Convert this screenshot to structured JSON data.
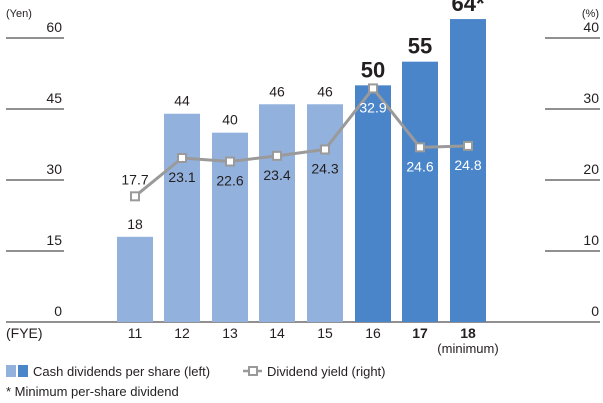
{
  "chart_data": {
    "type": "bar",
    "left_axis": {
      "unit": "(Yen)",
      "ticks": [
        "60",
        "45",
        "30",
        "15",
        "0"
      ],
      "ylim": [
        0,
        60
      ]
    },
    "right_axis": {
      "unit": "(%)",
      "ticks": [
        "40",
        "30",
        "20",
        "10",
        "0"
      ],
      "ylim": [
        0,
        40
      ]
    },
    "x_axis": {
      "label": "(FYE)",
      "categories": [
        "11",
        "12",
        "13",
        "14",
        "15",
        "16",
        "17",
        "18"
      ],
      "sublabel_18": "(minimum)"
    },
    "bar_labels": [
      "18",
      "44",
      "40",
      "46",
      "46",
      "50",
      "55",
      "64*"
    ],
    "series": [
      {
        "name": "Cash dividends per share (left)",
        "kind": "bar",
        "axis": "left",
        "values": [
          18,
          44,
          40,
          46,
          46,
          50,
          55,
          64
        ],
        "colors": [
          "#93b1dd",
          "#93b1dd",
          "#93b1dd",
          "#93b1dd",
          "#93b1dd",
          "#4a84c9",
          "#4a84c9",
          "#4a84c9"
        ]
      },
      {
        "name": "Dividend yield (right)",
        "kind": "line",
        "axis": "right",
        "values": [
          17.7,
          23.1,
          22.6,
          23.4,
          24.3,
          32.9,
          24.6,
          24.8
        ],
        "color": "#9a9a9a"
      }
    ],
    "line_labels": [
      "17.7",
      "23.1",
      "22.6",
      "23.4",
      "24.3",
      "32.9",
      "24.6",
      "24.8"
    ],
    "legend": {
      "placement": "bottom-left",
      "bar_label": "Cash dividends per share (left)",
      "line_label": "Dividend yield (right)"
    },
    "footnote": "* Minimum per-share dividend",
    "grid": false
  }
}
